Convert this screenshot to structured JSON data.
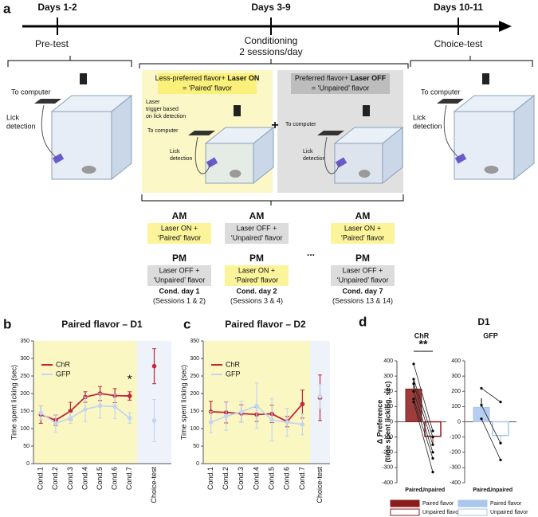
{
  "figure": {
    "panel_labels": [
      "a",
      "b",
      "c",
      "d"
    ],
    "d_heading": "D1"
  },
  "timeline": {
    "days": [
      "Days 1-2",
      "Days 3-9",
      "Days 10-11"
    ],
    "phases": [
      "Pre-test",
      "Conditioning",
      "2 sessions/day",
      "Choice-test"
    ]
  },
  "setup": {
    "to_computer": "To computer",
    "lick_detection": [
      "Lick",
      "detection"
    ],
    "laser_trigger": [
      "Laser",
      "trigger based",
      "on lick detection"
    ],
    "paired_box": [
      "Less-preferred flavor+ ",
      "Laser ON",
      "= ‘Paired’ flavor"
    ],
    "unpaired_box": [
      "Preferred flavor+ ",
      "Laser OFF",
      "= ‘Unpaired’ flavor"
    ],
    "plus": "+"
  },
  "schedule": {
    "ellipsis": "...",
    "columns": [
      {
        "am": "AM",
        "am_text": [
          "Laser ON +",
          "‘Paired’ flavor"
        ],
        "am_color": "#fbf49a",
        "pm": "PM",
        "pm_text": [
          "Laser OFF +",
          "‘Unpaired’ flavor"
        ],
        "pm_color": "#dcdcdc",
        "day": "Cond. day 1",
        "sessions": "(Sessions 1 & 2)"
      },
      {
        "am": "AM",
        "am_text": [
          "Laser OFF +",
          "‘Unpaired’ flavor"
        ],
        "am_color": "#dcdcdc",
        "pm": "PM",
        "pm_text": [
          "Laser ON +",
          "‘Paired’ flavor"
        ],
        "pm_color": "#fbf49a",
        "day": "Cond. day 2",
        "sessions": "(Sessions 3 & 4)"
      },
      {
        "am": "AM",
        "am_text": [
          "Laser ON +",
          "‘Paired’ flavor"
        ],
        "am_color": "#fbf49a",
        "pm": "PM",
        "pm_text": [
          "Laser OFF +",
          "‘Unpaired’ flavor"
        ],
        "pm_color": "#dcdcdc",
        "day": "Cond. day 7",
        "sessions": "(Sessions 13 & 14)"
      }
    ]
  },
  "chart_data": [
    {
      "type": "line",
      "title": "Paired flavor – D1",
      "ylabel": "Time spent licking (sec)",
      "annotation": "*",
      "category_color": "#e8a02e",
      "categories": [
        "Cond.1",
        "Cond.2",
        "Cond.3",
        "Cond.4",
        "Cond.5",
        "Cond.6",
        "Cond.7",
        "Choice-test"
      ],
      "series": [
        {
          "name": "ChR",
          "color": "#c0283a",
          "values": [
            140,
            124,
            150,
            190,
            200,
            194,
            193,
            278
          ],
          "errors": [
            25,
            15,
            25,
            15,
            20,
            20,
            12,
            50
          ]
        },
        {
          "name": "GFP",
          "color": "#c3d6f0",
          "values": [
            145,
            115,
            130,
            155,
            165,
            163,
            130,
            123
          ],
          "errors": [
            20,
            25,
            15,
            35,
            35,
            35,
            15,
            60
          ]
        }
      ],
      "ylim": [
        0,
        350
      ],
      "yticks": [
        0,
        50,
        100,
        150,
        200,
        250,
        300,
        350
      ]
    },
    {
      "type": "line",
      "title": "Paired flavor – D2",
      "ylabel": "Time spent licking (sec)",
      "category_color": "#e8a02e",
      "categories": [
        "Cond.1",
        "Cond.2",
        "Cond.3",
        "Cond.4",
        "Cond.5",
        "Cond.6",
        "Cond.7",
        "Choice-test"
      ],
      "series": [
        {
          "name": "ChR",
          "color": "#c0283a",
          "values": [
            148,
            146,
            143,
            140,
            142,
            120,
            170,
            188
          ],
          "errors": [
            30,
            30,
            25,
            20,
            25,
            15,
            40,
            65
          ]
        },
        {
          "name": "GFP",
          "color": "#c3d6f0",
          "values": [
            118,
            135,
            148,
            165,
            125,
            118,
            112,
            192
          ],
          "errors": [
            30,
            40,
            30,
            65,
            60,
            40,
            30,
            35
          ]
        }
      ],
      "ylim": [
        0,
        350
      ],
      "yticks": [
        0,
        50,
        100,
        150,
        200,
        250,
        300,
        350
      ]
    },
    {
      "type": "bar",
      "title": "ChR",
      "title_color": "#c0283a",
      "ylabel": [
        "Δ Preference",
        "(time spent licking, sec)"
      ],
      "annotation": "**",
      "categories": [
        "Paired",
        "Unpaired"
      ],
      "values": [
        215,
        -95
      ],
      "errors": [
        55,
        55
      ],
      "color": "#8b1a1a",
      "legend": [
        "Paired flavor",
        "Unpaired flavor"
      ],
      "subjects": [
        [
          380,
          -60
        ],
        [
          280,
          -100
        ],
        [
          250,
          -150
        ],
        [
          200,
          -200
        ],
        [
          150,
          -240
        ],
        [
          130,
          -330
        ]
      ],
      "ylim": [
        -400,
        400
      ],
      "yticks": [
        -400,
        -300,
        -200,
        -100,
        0,
        100,
        200,
        300,
        400
      ]
    },
    {
      "type": "bar",
      "title": "GFP",
      "title_color": "#a9c6ec",
      "categories": [
        "Paired",
        "Unpaired"
      ],
      "values": [
        95,
        -90
      ],
      "errors": [
        60,
        60
      ],
      "color": "#a9c6ec",
      "legend": [
        "Paired flavor",
        "Unpaired flavor"
      ],
      "subjects": [
        [
          220,
          130
        ],
        [
          110,
          -140
        ],
        [
          20,
          -250
        ]
      ],
      "ylim": [
        -400,
        400
      ],
      "yticks": [
        -400,
        -300,
        -200,
        -100,
        0,
        100,
        200,
        300,
        400
      ]
    }
  ]
}
